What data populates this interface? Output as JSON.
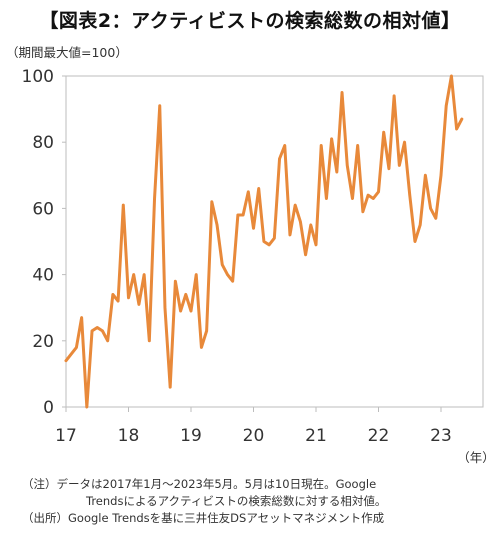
{
  "title": "【図表2：アクティビストの検索総数の相対値】",
  "unit_label": "（期間最大値=100）",
  "notes": {
    "line1": "（注）データは2017年1月～2023年5月。5月は10日現在。Google",
    "line2": "Trendsによるアクティビストの検索総数に対する相対値。",
    "line3": "（出所）Google Trendsを基に三井住友DSアセットマネジメント作成"
  },
  "chart_data": {
    "type": "line",
    "title": "【図表2：アクティビストの検索総数の相対値】",
    "ylabel": "（期間最大値=100）",
    "xlabel": "（年）",
    "x_start": "2017-01",
    "x_end": "2023-05",
    "ylim": [
      0,
      100
    ],
    "xticks": [
      "17",
      "18",
      "19",
      "20",
      "21",
      "22",
      "23"
    ],
    "yticks": [
      "0",
      "20",
      "40",
      "60",
      "80",
      "100"
    ],
    "grid": false,
    "legend": "none",
    "color": "#E8893A",
    "series": [
      {
        "values": [
          14,
          16,
          18,
          27,
          0,
          23,
          24,
          23,
          20,
          34,
          32,
          61,
          33,
          40,
          31,
          40,
          20,
          63,
          91,
          30,
          6,
          38,
          29,
          34,
          29,
          40,
          18,
          23,
          62,
          55,
          43,
          40,
          38,
          58,
          58,
          65,
          54,
          66,
          50,
          49,
          51,
          75,
          79,
          52,
          61,
          56,
          46,
          55,
          49,
          79,
          63,
          81,
          71,
          95,
          73,
          63,
          79,
          59,
          64,
          63,
          65,
          83,
          72,
          94,
          73,
          80,
          64,
          50,
          55,
          70,
          60,
          57,
          70,
          91,
          100,
          84,
          87
        ]
      }
    ]
  }
}
